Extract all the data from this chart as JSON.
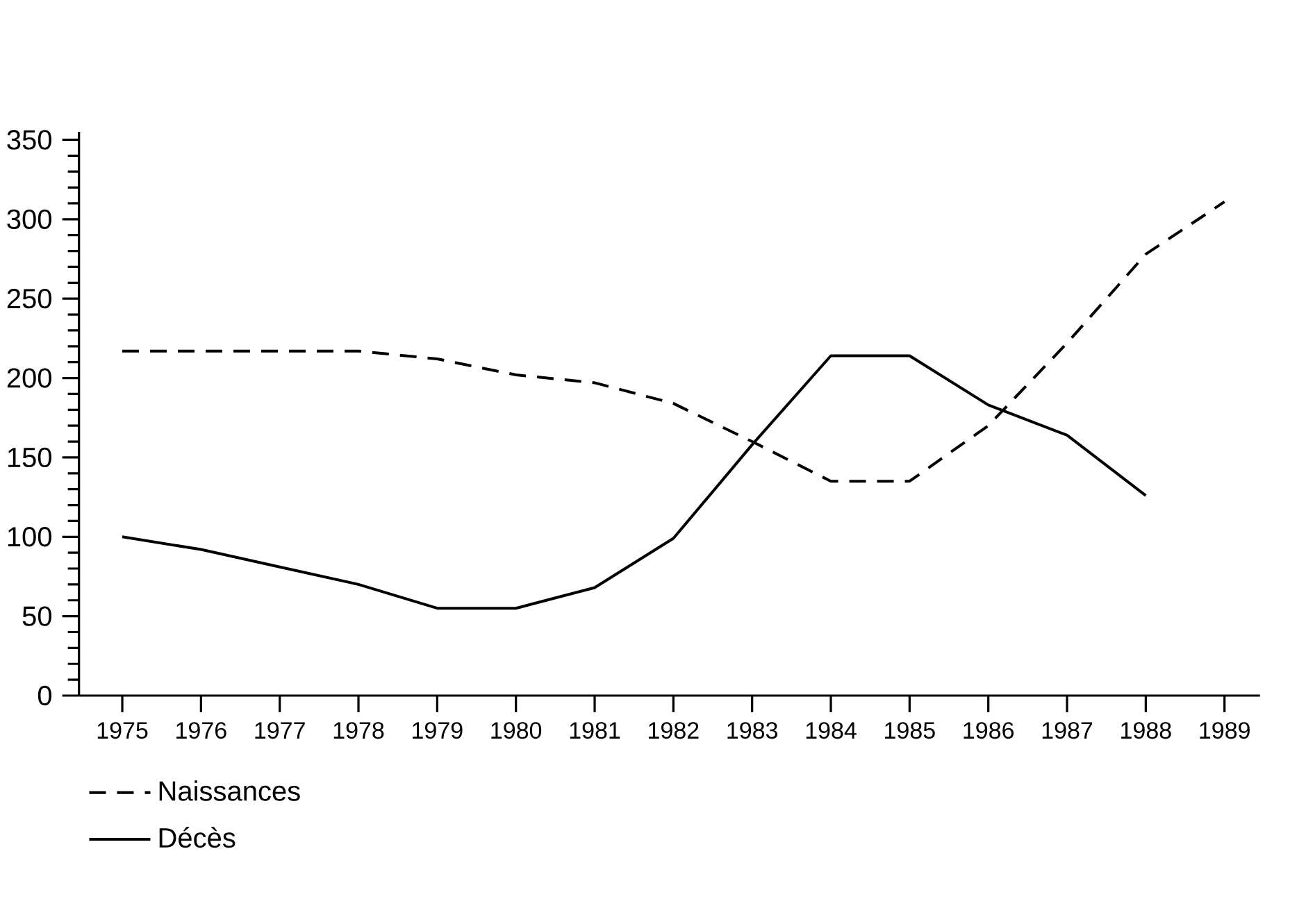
{
  "chart_data": {
    "type": "line",
    "categories": [
      "1975",
      "1976",
      "1977",
      "1978",
      "1979",
      "1980",
      "1981",
      "1982",
      "1983",
      "1984",
      "1985",
      "1986",
      "1987",
      "1988",
      "1989"
    ],
    "series": [
      {
        "name": "Naissances",
        "color": "#000000",
        "line_style": "dashed",
        "values": [
          217,
          217,
          217,
          217,
          212,
          202,
          197,
          184,
          160,
          135,
          135,
          170,
          222,
          278,
          311
        ]
      },
      {
        "name": "Décès",
        "color": "#000000",
        "line_style": "solid",
        "values": [
          100,
          92,
          81,
          70,
          55,
          55,
          68,
          99,
          158,
          214,
          214,
          183,
          164,
          126,
          null
        ]
      }
    ],
    "ylim": [
      0,
      355
    ],
    "yticks": [
      0,
      50,
      100,
      150,
      200,
      250,
      300,
      350
    ],
    "legend": "bottom left"
  }
}
